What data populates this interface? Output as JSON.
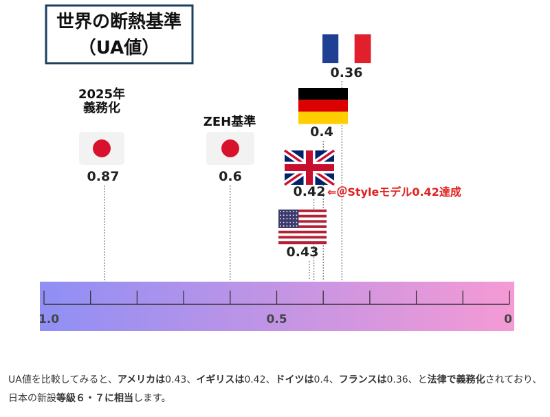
{
  "colors": {
    "gradient_start": "#8f8ff5",
    "gradient_end": "#f59ad4",
    "frame": "#1a3f5f",
    "highlight": "#e02020",
    "japan_red": "#d8122d"
  },
  "chart_data": {
    "type": "scatter",
    "title": "世界の断熱基準",
    "subtitle": "（UA値）",
    "xlabel": "",
    "ylabel": "",
    "xlim": [
      1.0,
      0
    ],
    "x_axis_reversed": true,
    "tick_step": 0.1,
    "tick_labels": [
      "1.0",
      "0.5",
      "0"
    ],
    "points": [
      {
        "label": "2025年\n義務化",
        "value_label": "0.87",
        "x": 0.87,
        "flag": "japan-flag"
      },
      {
        "label": "ZEH基準",
        "value_label": "0.6",
        "x": 0.6,
        "flag": "japan-flag"
      },
      {
        "label": "",
        "value_label": "0.43",
        "x": 0.43,
        "flag": "usa-flag"
      },
      {
        "label": "",
        "value_label": "0.42",
        "x": 0.42,
        "flag": "uk-flag"
      },
      {
        "label": "",
        "value_label": "0.4",
        "x": 0.4,
        "flag": "germany-flag"
      },
      {
        "label": "",
        "value_label": "0.36",
        "x": 0.36,
        "flag": "france-flag"
      }
    ],
    "annotation": "⇐＠Styleモデル0.42達成"
  },
  "caption": {
    "segments": [
      {
        "text": "UA値を比較してみると、",
        "bold": false
      },
      {
        "text": "アメリカは",
        "bold": true
      },
      {
        "text": "0.43、",
        "bold": false
      },
      {
        "text": "イギリスは",
        "bold": true
      },
      {
        "text": "0.42、",
        "bold": false
      },
      {
        "text": "ドイツは",
        "bold": true
      },
      {
        "text": "0.4、",
        "bold": false
      },
      {
        "text": "フランスは",
        "bold": true
      },
      {
        "text": "0.36、と",
        "bold": false
      },
      {
        "text": "法律で義務化",
        "bold": true
      },
      {
        "text": "されており、日本の新設",
        "bold": false
      },
      {
        "text": "等級６・７に相当",
        "bold": true
      },
      {
        "text": "します。",
        "bold": false
      }
    ]
  }
}
